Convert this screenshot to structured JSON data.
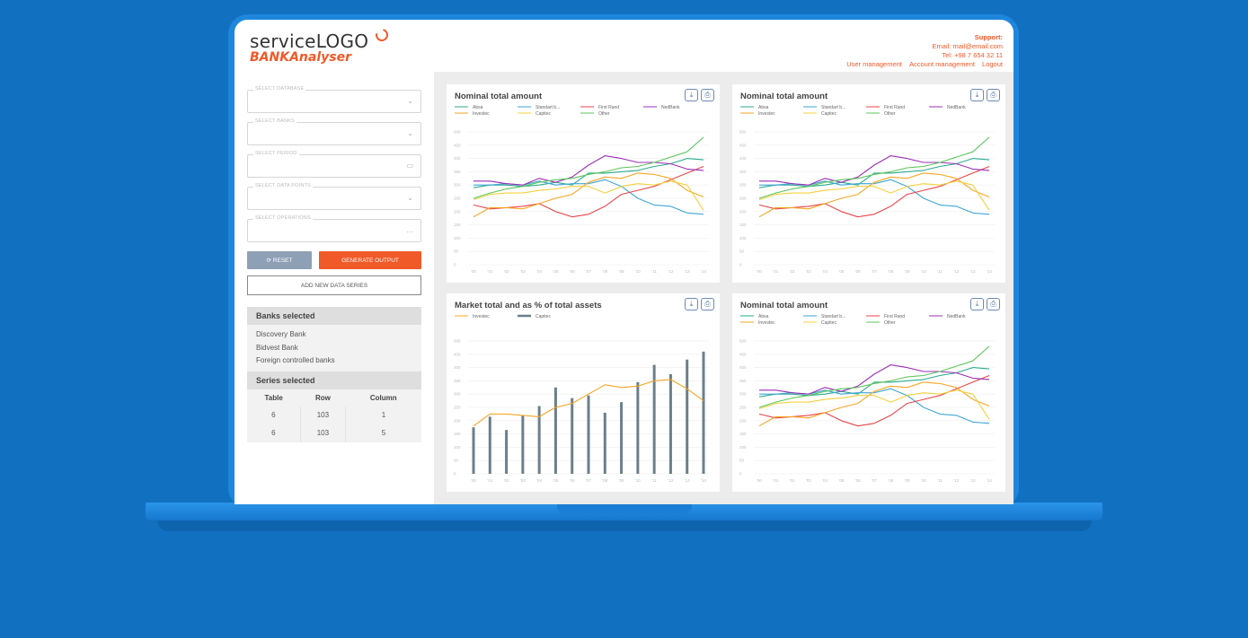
{
  "brand": {
    "logo_text": "serviceLOGO",
    "app_name": "BANKAnalyser",
    "accent": "#f05a28"
  },
  "support": {
    "title": "Support:",
    "email": "Email: mail@email.com",
    "tel": "Tel: +98 7 654 32 11",
    "links": [
      "User management",
      "Account management",
      "Logout"
    ]
  },
  "filters": [
    {
      "label": "SELECT DATABASE",
      "icon": "chevron-down-icon",
      "glyph": "⌄"
    },
    {
      "label": "SELECT BANKS",
      "icon": "chevron-down-icon",
      "glyph": "⌄"
    },
    {
      "label": "SELECT PERIOD",
      "icon": "calendar-icon",
      "glyph": "▭"
    },
    {
      "label": "SELECT DATA POINTS",
      "icon": "chevron-down-icon",
      "glyph": "⌄"
    },
    {
      "label": "SELECT OPERATIONS",
      "icon": "more-icon",
      "glyph": "…"
    }
  ],
  "buttons": {
    "reset": "⟳ RESET",
    "generate": "GENERATE OUTPUT",
    "add": "ADD NEW DATA SERIES"
  },
  "banks_panel": {
    "title": "Banks selected",
    "items": [
      "Discovery Bank",
      "Bidvest Bank",
      "Foreign controlled banks"
    ]
  },
  "series_panel": {
    "title": "Series selected",
    "columns": [
      "Table",
      "Row",
      "Column"
    ],
    "rows": [
      [
        "6",
        "103",
        "1"
      ],
      [
        "6",
        "103",
        "5"
      ]
    ]
  },
  "card_icons": {
    "download": "⤓",
    "print": "⎙"
  },
  "chart_data": [
    {
      "type": "line",
      "title": "Nominal total amount",
      "categories": [
        "'00",
        "'01",
        "'02",
        "'03",
        "'04",
        "'05",
        "'06",
        "'07",
        "'08",
        "'09",
        "'10",
        "'11",
        "'12",
        "'13",
        "'14"
      ],
      "ylim": [
        0,
        500
      ],
      "yticks": [
        0,
        50,
        100,
        150,
        200,
        250,
        300,
        350,
        400,
        450,
        500
      ],
      "legend": "top",
      "series": [
        {
          "name": "Absa",
          "color": "#2bab8e",
          "values": [
            290,
            300,
            300,
            295,
            300,
            310,
            300,
            345,
            345,
            350,
            355,
            370,
            380,
            400,
            395
          ]
        },
        {
          "name": "Standart b...",
          "color": "#3fa6d6",
          "values": [
            300,
            300,
            305,
            300,
            315,
            300,
            305,
            305,
            320,
            295,
            250,
            225,
            220,
            195,
            190
          ]
        },
        {
          "name": "First Rand",
          "color": "#e8464a",
          "values": [
            225,
            210,
            215,
            220,
            230,
            200,
            180,
            190,
            220,
            265,
            280,
            295,
            320,
            345,
            370
          ]
        },
        {
          "name": "NedBank",
          "color": "#9b2fb5",
          "values": [
            315,
            315,
            305,
            300,
            325,
            310,
            330,
            375,
            410,
            400,
            385,
            385,
            380,
            360,
            355
          ]
        },
        {
          "name": "Investec",
          "color": "#f5a623",
          "values": [
            180,
            215,
            215,
            210,
            230,
            250,
            265,
            310,
            330,
            325,
            345,
            340,
            325,
            280,
            255
          ]
        },
        {
          "name": "Capitec",
          "color": "#f4d03f",
          "values": [
            245,
            265,
            270,
            270,
            280,
            285,
            295,
            295,
            270,
            295,
            305,
            300,
            315,
            300,
            205
          ]
        },
        {
          "name": "Other",
          "color": "#5cc55c",
          "values": [
            250,
            270,
            285,
            295,
            310,
            320,
            325,
            340,
            350,
            365,
            370,
            385,
            405,
            425,
            480
          ]
        }
      ]
    },
    {
      "type": "line",
      "title": "Nominal total amount",
      "categories": [
        "'00",
        "'01",
        "'02",
        "'03",
        "'04",
        "'05",
        "'06",
        "'07",
        "'08",
        "'09",
        "'10",
        "'11",
        "'12",
        "'13",
        "'14"
      ],
      "ylim": [
        0,
        500
      ],
      "yticks": [
        0,
        50,
        100,
        150,
        200,
        250,
        300,
        350,
        400,
        450,
        500
      ],
      "legend": "top",
      "series": [
        {
          "name": "Absa",
          "color": "#2bab8e",
          "values": [
            290,
            300,
            300,
            295,
            300,
            310,
            300,
            345,
            345,
            350,
            355,
            370,
            380,
            400,
            395
          ]
        },
        {
          "name": "Standart b...",
          "color": "#3fa6d6",
          "values": [
            300,
            300,
            305,
            300,
            315,
            300,
            305,
            305,
            320,
            295,
            250,
            225,
            220,
            195,
            190
          ]
        },
        {
          "name": "First Rand",
          "color": "#e8464a",
          "values": [
            225,
            210,
            215,
            220,
            230,
            200,
            180,
            190,
            220,
            265,
            280,
            295,
            320,
            345,
            370
          ]
        },
        {
          "name": "NedBank",
          "color": "#9b2fb5",
          "values": [
            315,
            315,
            305,
            300,
            325,
            310,
            330,
            375,
            410,
            400,
            385,
            385,
            380,
            360,
            355
          ]
        },
        {
          "name": "Investec",
          "color": "#f5a623",
          "values": [
            180,
            215,
            215,
            210,
            230,
            250,
            265,
            310,
            330,
            325,
            345,
            340,
            325,
            280,
            255
          ]
        },
        {
          "name": "Capitec",
          "color": "#f4d03f",
          "values": [
            245,
            265,
            270,
            270,
            280,
            285,
            295,
            295,
            270,
            295,
            305,
            300,
            315,
            300,
            205
          ]
        },
        {
          "name": "Other",
          "color": "#5cc55c",
          "values": [
            250,
            270,
            285,
            295,
            310,
            320,
            325,
            340,
            350,
            365,
            370,
            385,
            405,
            425,
            480
          ]
        }
      ]
    },
    {
      "type": "bar",
      "title": "Market total and as % of total assets",
      "categories": [
        "'00",
        "'01",
        "'02",
        "'03",
        "'04",
        "'05",
        "'06",
        "'07",
        "'08",
        "'09",
        "'10",
        "'11",
        "'12",
        "'13",
        "'14"
      ],
      "ylim": [
        0,
        500
      ],
      "yticks": [
        0,
        50,
        100,
        150,
        200,
        250,
        300,
        350,
        400,
        450,
        500
      ],
      "legend": "top",
      "series": [
        {
          "name": "Investec",
          "kind": "line",
          "color": "#f5a623",
          "values": [
            180,
            225,
            225,
            220,
            215,
            250,
            265,
            300,
            335,
            325,
            330,
            350,
            355,
            320,
            275
          ]
        },
        {
          "name": "Capitec",
          "kind": "bar",
          "color": "#6b7f8b",
          "values": [
            175,
            215,
            165,
            220,
            255,
            325,
            285,
            295,
            230,
            270,
            345,
            410,
            375,
            430,
            460
          ]
        }
      ]
    },
    {
      "type": "line",
      "title": "Nominal total amount",
      "categories": [
        "'00",
        "'01",
        "'02",
        "'03",
        "'04",
        "'05",
        "'06",
        "'07",
        "'08",
        "'09",
        "'10",
        "'11",
        "'12",
        "'13",
        "'14"
      ],
      "ylim": [
        0,
        500
      ],
      "yticks": [
        0,
        50,
        100,
        150,
        200,
        250,
        300,
        350,
        400,
        450,
        500
      ],
      "legend": "top",
      "series": [
        {
          "name": "Absa",
          "color": "#2bab8e",
          "values": [
            290,
            300,
            300,
            295,
            300,
            310,
            300,
            345,
            345,
            350,
            355,
            370,
            380,
            400,
            395
          ]
        },
        {
          "name": "Standart b...",
          "color": "#3fa6d6",
          "values": [
            300,
            300,
            305,
            300,
            315,
            300,
            305,
            305,
            320,
            295,
            250,
            225,
            220,
            195,
            190
          ]
        },
        {
          "name": "First Rand",
          "color": "#e8464a",
          "values": [
            225,
            210,
            215,
            220,
            230,
            200,
            180,
            190,
            220,
            265,
            280,
            295,
            320,
            345,
            370
          ]
        },
        {
          "name": "NedBank",
          "color": "#9b2fb5",
          "values": [
            315,
            315,
            305,
            300,
            325,
            310,
            330,
            375,
            410,
            400,
            385,
            385,
            380,
            360,
            355
          ]
        },
        {
          "name": "Investec",
          "color": "#f5a623",
          "values": [
            180,
            215,
            215,
            210,
            230,
            250,
            265,
            310,
            330,
            325,
            345,
            340,
            325,
            280,
            255
          ]
        },
        {
          "name": "Capitec",
          "color": "#f4d03f",
          "values": [
            245,
            265,
            270,
            270,
            280,
            285,
            295,
            295,
            270,
            295,
            305,
            300,
            315,
            300,
            205
          ]
        },
        {
          "name": "Other",
          "color": "#5cc55c",
          "values": [
            250,
            270,
            285,
            295,
            310,
            320,
            325,
            340,
            350,
            365,
            370,
            385,
            405,
            425,
            480
          ]
        }
      ]
    }
  ]
}
